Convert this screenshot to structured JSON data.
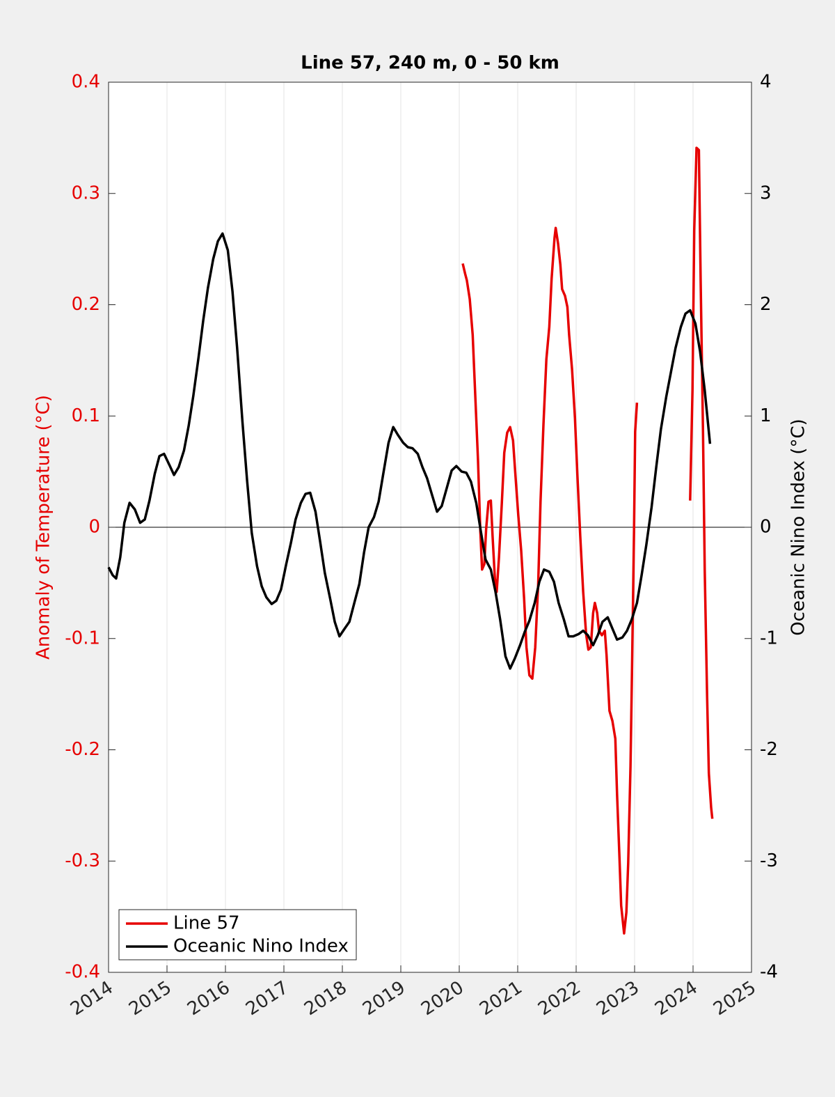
{
  "chart_data": {
    "type": "line",
    "title": "Line 57, 240 m, 0 - 50 km",
    "ylabel": "Anomaly of Temperature (°C)",
    "y2label": "Oceanic Nino Index (°C)",
    "xlim": [
      2014,
      2025
    ],
    "xticks": [
      2014,
      2015,
      2016,
      2017,
      2018,
      2019,
      2020,
      2021,
      2022,
      2023,
      2024,
      2025
    ],
    "ylim": [
      -0.4,
      0.4
    ],
    "yticks": [
      -0.4,
      -0.3,
      -0.2,
      -0.1,
      0,
      0.1,
      0.2,
      0.3,
      0.4
    ],
    "y2lim": [
      -4,
      4
    ],
    "y2ticks": [
      -4,
      -3,
      -2,
      -1,
      0,
      1,
      2,
      3,
      4
    ],
    "grid": "x",
    "legend": "lower left",
    "series": [
      {
        "name": "Line 57",
        "color": "#e60000",
        "axis": "y",
        "x": [
          2020.06,
          2020.1,
          2020.13,
          2020.18,
          2020.23,
          2020.27,
          2020.32,
          2020.36,
          2020.39,
          2020.43,
          2020.46,
          2020.5,
          2020.54,
          2020.57,
          2020.61,
          2020.64,
          2020.68,
          2020.73,
          2020.77,
          2020.82,
          2020.87,
          2020.92,
          2020.96,
          2021.01,
          2021.06,
          2021.11,
          2021.15,
          2021.2,
          2021.25,
          2021.3,
          2021.35,
          2021.39,
          2021.44,
          2021.49,
          2021.54,
          2021.58,
          2021.63,
          2021.65,
          2021.69,
          2021.73,
          2021.76,
          2021.81,
          2021.85,
          2021.88,
          2021.93,
          2021.98,
          2022.02,
          2022.07,
          2022.12,
          2022.17,
          2022.21,
          2022.25,
          2022.29,
          2022.32,
          2022.36,
          2022.39,
          2022.44,
          2022.49,
          2022.52,
          2022.57,
          2022.62,
          2022.67,
          2022.7,
          2022.74,
          2022.77,
          2022.82,
          2022.86,
          2022.89,
          2022.93,
          2022.96,
          2022.99,
          2023.01,
          2023.04,
          2023.5,
          2023.95,
          2023.99,
          2024.02,
          2024.06,
          2024.1,
          2024.13,
          2024.17,
          2024.2,
          2024.24,
          2024.27,
          2024.31,
          2024.33
        ],
        "values": [
          0.237,
          0.228,
          0.222,
          0.205,
          0.173,
          0.123,
          0.061,
          -0.002,
          -0.038,
          -0.033,
          -0.002,
          0.023,
          0.024,
          -0.008,
          -0.046,
          -0.058,
          -0.027,
          0.023,
          0.067,
          0.085,
          0.09,
          0.078,
          0.048,
          0.011,
          -0.021,
          -0.064,
          -0.108,
          -0.133,
          -0.136,
          -0.108,
          -0.052,
          0.023,
          0.092,
          0.151,
          0.18,
          0.223,
          0.26,
          0.269,
          0.255,
          0.236,
          0.214,
          0.208,
          0.198,
          0.173,
          0.142,
          0.098,
          0.048,
          -0.008,
          -0.058,
          -0.096,
          -0.11,
          -0.108,
          -0.077,
          -0.068,
          -0.077,
          -0.093,
          -0.097,
          -0.093,
          -0.115,
          -0.165,
          -0.174,
          -0.19,
          -0.24,
          -0.296,
          -0.34,
          -0.365,
          -0.346,
          -0.302,
          -0.215,
          -0.115,
          -0.002,
          0.086,
          0.112,
          null,
          0.024,
          0.123,
          0.267,
          0.341,
          0.339,
          0.223,
          0.086,
          -0.039,
          -0.152,
          -0.221,
          -0.252,
          -0.262
        ]
      },
      {
        "name": "Oceanic Nino Index",
        "color": "#000000",
        "axis": "y2",
        "x": [
          2014.0,
          2014.07,
          2014.13,
          2014.2,
          2014.27,
          2014.36,
          2014.45,
          2014.54,
          2014.62,
          2014.7,
          2014.79,
          2014.87,
          2014.95,
          2015.04,
          2015.12,
          2015.2,
          2015.29,
          2015.37,
          2015.45,
          2015.54,
          2015.62,
          2015.7,
          2015.79,
          2015.87,
          2015.95,
          2016.04,
          2016.12,
          2016.2,
          2016.29,
          2016.37,
          2016.45,
          2016.54,
          2016.62,
          2016.7,
          2016.79,
          2016.87,
          2016.95,
          2017.04,
          2017.12,
          2017.2,
          2017.29,
          2017.37,
          2017.45,
          2017.54,
          2017.62,
          2017.7,
          2017.79,
          2017.87,
          2017.95,
          2018.04,
          2018.12,
          2018.2,
          2018.29,
          2018.37,
          2018.45,
          2018.54,
          2018.62,
          2018.7,
          2018.79,
          2018.87,
          2018.95,
          2019.04,
          2019.12,
          2019.2,
          2019.29,
          2019.37,
          2019.45,
          2019.54,
          2019.62,
          2019.7,
          2019.79,
          2019.87,
          2019.95,
          2020.04,
          2020.12,
          2020.2,
          2020.29,
          2020.37,
          2020.45,
          2020.54,
          2020.62,
          2020.7,
          2020.79,
          2020.87,
          2020.95,
          2021.04,
          2021.12,
          2021.2,
          2021.29,
          2021.37,
          2021.45,
          2021.54,
          2021.62,
          2021.7,
          2021.79,
          2021.87,
          2021.95,
          2022.04,
          2022.12,
          2022.2,
          2022.29,
          2022.37,
          2022.45,
          2022.54,
          2022.62,
          2022.7,
          2022.79,
          2022.87,
          2022.95,
          2023.04,
          2023.12,
          2023.2,
          2023.29,
          2023.37,
          2023.45,
          2023.54,
          2023.62,
          2023.7,
          2023.79,
          2023.87,
          2023.95,
          2024.04,
          2024.12,
          2024.2,
          2024.29
        ],
        "values": [
          -0.36,
          -0.43,
          -0.46,
          -0.27,
          0.04,
          0.22,
          0.16,
          0.04,
          0.07,
          0.24,
          0.48,
          0.64,
          0.66,
          0.56,
          0.47,
          0.54,
          0.69,
          0.91,
          1.18,
          1.53,
          1.86,
          2.15,
          2.41,
          2.57,
          2.64,
          2.49,
          2.12,
          1.61,
          0.95,
          0.42,
          -0.05,
          -0.35,
          -0.53,
          -0.63,
          -0.69,
          -0.66,
          -0.56,
          -0.33,
          -0.14,
          0.07,
          0.22,
          0.3,
          0.31,
          0.14,
          -0.13,
          -0.41,
          -0.64,
          -0.85,
          -0.98,
          -0.91,
          -0.85,
          -0.69,
          -0.51,
          -0.23,
          0.0,
          0.09,
          0.23,
          0.48,
          0.76,
          0.9,
          0.83,
          0.76,
          0.72,
          0.71,
          0.66,
          0.54,
          0.44,
          0.28,
          0.14,
          0.19,
          0.36,
          0.51,
          0.55,
          0.5,
          0.49,
          0.41,
          0.22,
          -0.04,
          -0.29,
          -0.38,
          -0.58,
          -0.83,
          -1.16,
          -1.27,
          -1.18,
          -1.06,
          -0.94,
          -0.84,
          -0.68,
          -0.49,
          -0.38,
          -0.4,
          -0.49,
          -0.68,
          -0.83,
          -0.98,
          -0.98,
          -0.96,
          -0.93,
          -0.97,
          -1.06,
          -0.97,
          -0.85,
          -0.81,
          -0.91,
          -1.01,
          -0.99,
          -0.93,
          -0.83,
          -0.68,
          -0.43,
          -0.16,
          0.18,
          0.54,
          0.88,
          1.17,
          1.39,
          1.61,
          1.8,
          1.92,
          1.95,
          1.83,
          1.58,
          1.23,
          0.75
        ]
      }
    ]
  }
}
